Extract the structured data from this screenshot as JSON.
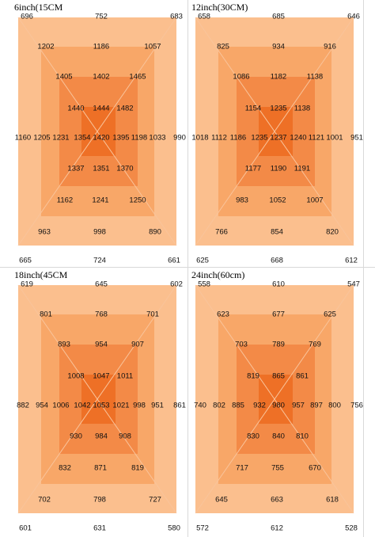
{
  "colors": {
    "layer1": "#fbbf8e",
    "layer2": "#f8a768",
    "layer3": "#f38a47",
    "layer4": "#ee7026",
    "diagonal": "#f9c49b"
  },
  "panels": [
    {
      "title": "6inch(15CM",
      "values": {
        "r0": [
          "696",
          "752",
          "683",
          "1160",
          "990",
          "665",
          "724",
          "661"
        ],
        "r1": [
          "1202",
          "1186",
          "1057",
          "1205",
          "1033",
          "963",
          "998",
          "890"
        ],
        "r2": [
          "1405",
          "1402",
          "1465",
          "1231",
          "1198",
          "1162",
          "1241",
          "1250"
        ],
        "r3": [
          "1440",
          "1444",
          "1482",
          "1354",
          "1395",
          "1337",
          "1351",
          "1370"
        ],
        "center": "1420"
      }
    },
    {
      "title": "12inch(30CM)",
      "values": {
        "r0": [
          "658",
          "685",
          "646",
          "1018",
          "951",
          "625",
          "668",
          "612"
        ],
        "r1": [
          "825",
          "934",
          "916",
          "1112",
          "1001",
          "766",
          "854",
          "820"
        ],
        "r2": [
          "1086",
          "1182",
          "1138",
          "1186",
          "1121",
          "983",
          "1052",
          "1007"
        ],
        "r3": [
          "1154",
          "1235",
          "1138",
          "1235",
          "1240",
          "1177",
          "1190",
          "1191"
        ],
        "center": "1237"
      }
    },
    {
      "title": "18inch(45CM",
      "values": {
        "r0": [
          "619",
          "645",
          "602",
          "882",
          "861",
          "601",
          "631",
          "580"
        ],
        "r1": [
          "801",
          "768",
          "701",
          "954",
          "951",
          "702",
          "798",
          "727"
        ],
        "r2": [
          "893",
          "954",
          "907",
          "1006",
          "998",
          "832",
          "871",
          "819"
        ],
        "r3": [
          "1008",
          "1047",
          "1011",
          "1042",
          "1021",
          "930",
          "984",
          "908"
        ],
        "center": "1053"
      }
    },
    {
      "title": "24inch(60cm)",
      "values": {
        "r0": [
          "558",
          "610",
          "547",
          "740",
          "756",
          "572",
          "612",
          "528"
        ],
        "r1": [
          "623",
          "677",
          "625",
          "802",
          "800",
          "645",
          "663",
          "618"
        ],
        "r2": [
          "703",
          "789",
          "769",
          "885",
          "897",
          "717",
          "755",
          "670"
        ],
        "r3": [
          "819",
          "865",
          "861",
          "932",
          "957",
          "830",
          "840",
          "810"
        ],
        "center": "980"
      }
    }
  ]
}
